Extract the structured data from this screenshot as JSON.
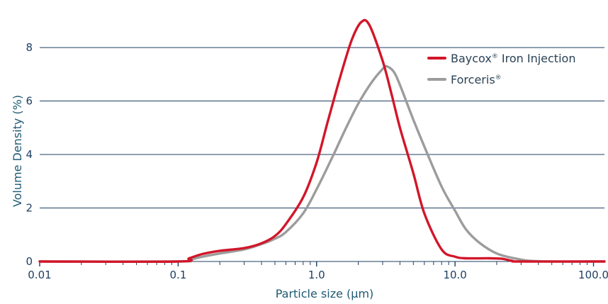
{
  "chart_data": {
    "type": "line",
    "xlabel": "Particle size (µm)",
    "ylabel": "Volume Density (%)",
    "x_scale": "log",
    "xlim": [
      0.01,
      120
    ],
    "ylim": [
      0,
      9.3
    ],
    "x_ticks": [
      0.01,
      0.1,
      1.0,
      10.0,
      100.0
    ],
    "x_tick_labels": [
      "0.01",
      "0.1",
      "1.0",
      "10.0",
      "100.0"
    ],
    "y_ticks": [
      0,
      2,
      4,
      6,
      8
    ],
    "y_tick_labels": [
      "0",
      "2",
      "4",
      "6",
      "8"
    ],
    "grid": "horizontal",
    "legend_position": "top-right",
    "series": [
      {
        "name": "Baycox® Iron Injection",
        "legend_main": "Baycox",
        "legend_rest": " Iron Injection",
        "color": "#d2162a",
        "points": [
          [
            0.01,
            0
          ],
          [
            0.1,
            0
          ],
          [
            0.12,
            0.12
          ],
          [
            0.15,
            0.28
          ],
          [
            0.2,
            0.4
          ],
          [
            0.3,
            0.5
          ],
          [
            0.4,
            0.68
          ],
          [
            0.5,
            0.95
          ],
          [
            0.6,
            1.4
          ],
          [
            0.8,
            2.4
          ],
          [
            1.0,
            3.7
          ],
          [
            1.2,
            5.2
          ],
          [
            1.5,
            7.0
          ],
          [
            1.8,
            8.3
          ],
          [
            2.1,
            8.95
          ],
          [
            2.4,
            8.85
          ],
          [
            3.0,
            7.5
          ],
          [
            3.5,
            6.2
          ],
          [
            4.0,
            5.0
          ],
          [
            5.0,
            3.3
          ],
          [
            6.0,
            1.8
          ],
          [
            8.0,
            0.45
          ],
          [
            10.0,
            0.18
          ],
          [
            12.0,
            0.12
          ],
          [
            18.0,
            0.12
          ],
          [
            22.0,
            0.1
          ],
          [
            26.0,
            0.02
          ],
          [
            30.0,
            0
          ],
          [
            120.0,
            0
          ]
        ]
      },
      {
        "name": "Forceris®",
        "legend_main": "Forceris",
        "legend_rest": "",
        "color": "#9c9c9c",
        "points": [
          [
            0.01,
            0
          ],
          [
            0.1,
            0
          ],
          [
            0.12,
            0.06
          ],
          [
            0.15,
            0.18
          ],
          [
            0.2,
            0.3
          ],
          [
            0.3,
            0.45
          ],
          [
            0.4,
            0.65
          ],
          [
            0.5,
            0.85
          ],
          [
            0.6,
            1.1
          ],
          [
            0.8,
            1.8
          ],
          [
            1.0,
            2.7
          ],
          [
            1.3,
            3.9
          ],
          [
            1.6,
            4.9
          ],
          [
            2.0,
            5.9
          ],
          [
            2.5,
            6.7
          ],
          [
            3.0,
            7.2
          ],
          [
            3.2,
            7.3
          ],
          [
            3.6,
            7.1
          ],
          [
            4.0,
            6.6
          ],
          [
            5.0,
            5.3
          ],
          [
            6.0,
            4.3
          ],
          [
            8.0,
            2.8
          ],
          [
            10.0,
            1.9
          ],
          [
            12.0,
            1.2
          ],
          [
            15.0,
            0.7
          ],
          [
            20.0,
            0.3
          ],
          [
            28.0,
            0.1
          ],
          [
            40.0,
            0.01
          ],
          [
            120.0,
            0
          ]
        ]
      }
    ]
  }
}
